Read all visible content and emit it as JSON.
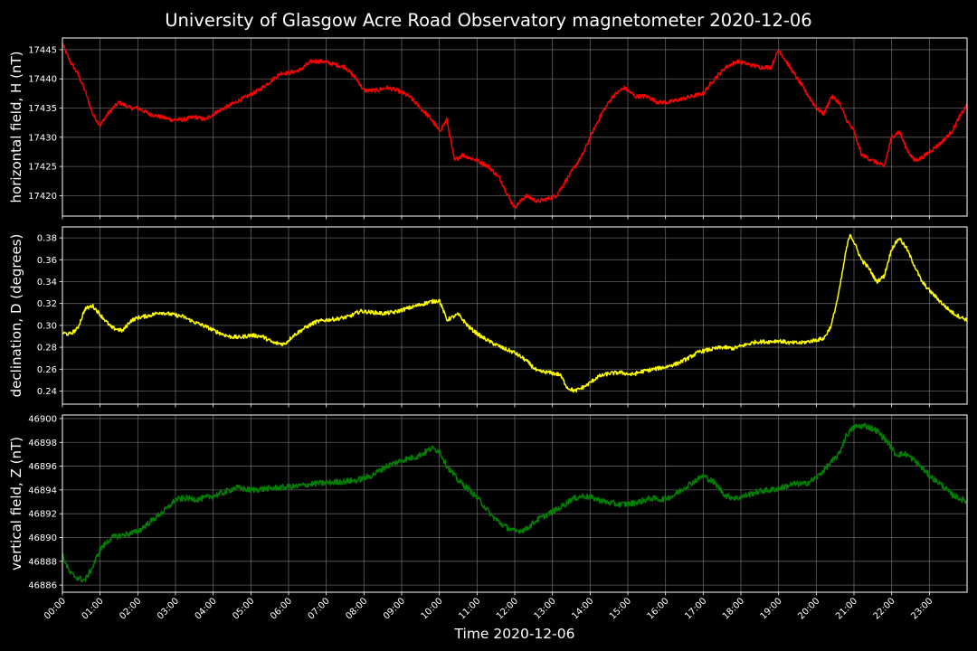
{
  "chart_data": {
    "type": "line",
    "title": "University of Glasgow Acre Road Observatory magnetometer 2020-12-06",
    "xlabel": "Time 2020-12-06",
    "x_ticks": [
      "00:00",
      "01:00",
      "02:00",
      "03:00",
      "04:00",
      "05:00",
      "06:00",
      "07:00",
      "08:00",
      "09:00",
      "10:00",
      "11:00",
      "12:00",
      "13:00",
      "14:00",
      "15:00",
      "16:00",
      "17:00",
      "18:00",
      "19:00",
      "20:00",
      "21:00",
      "22:00",
      "23:00"
    ],
    "xlim": [
      0,
      24
    ],
    "grid": true,
    "colors": {
      "background": "#000000",
      "grid": "#7f7f7f",
      "H": "#ff0000",
      "D": "#ffff00",
      "Z": "#008000",
      "text": "#ffffff"
    },
    "panels": [
      {
        "key": "H",
        "ylabel": "horizontal field, H (nT)",
        "ylim": [
          17416.5,
          17447
        ],
        "y_ticks": [
          17420,
          17425,
          17430,
          17435,
          17440,
          17445
        ],
        "noise": 0.35,
        "series": {
          "x": [
            0,
            0.2,
            0.4,
            0.6,
            0.8,
            1.0,
            1.2,
            1.5,
            1.8,
            2.0,
            2.3,
            2.6,
            2.9,
            3.2,
            3.5,
            3.8,
            4.0,
            4.3,
            4.6,
            4.9,
            5.2,
            5.5,
            5.8,
            6.0,
            6.3,
            6.6,
            6.9,
            7.2,
            7.5,
            7.8,
            8.0,
            8.3,
            8.6,
            8.9,
            9.2,
            9.5,
            9.8,
            10.0,
            10.2,
            10.4,
            10.6,
            10.8,
            11.0,
            11.3,
            11.6,
            11.9,
            12.0,
            12.3,
            12.6,
            12.9,
            13.1,
            13.3,
            13.5,
            13.8,
            14.0,
            14.3,
            14.6,
            14.9,
            15.2,
            15.5,
            15.8,
            16.1,
            16.4,
            16.7,
            17.0,
            17.3,
            17.6,
            17.9,
            18.2,
            18.5,
            18.8,
            19.0,
            19.2,
            19.5,
            19.8,
            20.0,
            20.2,
            20.4,
            20.6,
            20.8,
            21.0,
            21.2,
            21.5,
            21.8,
            22.0,
            22.2,
            22.4,
            22.6,
            22.8,
            23.0,
            23.3,
            23.6,
            23.8,
            24.0
          ],
          "values": [
            17446,
            17443,
            17441,
            17438,
            17434,
            17432,
            17434,
            17436,
            17435,
            17435,
            17434,
            17433.5,
            17433,
            17433,
            17433.5,
            17433,
            17434,
            17435,
            17436,
            17437,
            17438,
            17439.5,
            17441,
            17441,
            17441.5,
            17443,
            17443,
            17442.5,
            17442,
            17440,
            17438,
            17438,
            17438.5,
            17438,
            17437,
            17435,
            17433,
            17431,
            17433,
            17426,
            17427,
            17426.5,
            17426,
            17425,
            17423,
            17419,
            17418,
            17420,
            17419,
            17419.5,
            17420,
            17422,
            17424,
            17427,
            17430,
            17434,
            17437,
            17438.5,
            17437,
            17437,
            17436,
            17436,
            17436.5,
            17437,
            17437.5,
            17440,
            17442,
            17443,
            17442.5,
            17442,
            17442,
            17445,
            17443,
            17440,
            17437,
            17435,
            17434,
            17437,
            17436,
            17433,
            17431,
            17427,
            17426,
            17425,
            17430,
            17431,
            17428,
            17426,
            17426.5,
            17427.5,
            17429,
            17431,
            17433.5,
            17435.5
          ]
        }
      },
      {
        "key": "D",
        "ylabel": "declination, D (degrees)",
        "ylim": [
          0.228,
          0.39
        ],
        "y_ticks": [
          0.24,
          0.26,
          0.28,
          0.3,
          0.32,
          0.34,
          0.36,
          0.38
        ],
        "noise": 0.0018,
        "series": {
          "x": [
            0,
            0.2,
            0.4,
            0.6,
            0.8,
            1.0,
            1.3,
            1.6,
            1.8,
            2.0,
            2.3,
            2.6,
            2.9,
            3.2,
            3.5,
            3.8,
            4.1,
            4.4,
            4.7,
            5.0,
            5.3,
            5.6,
            5.9,
            6.1,
            6.4,
            6.7,
            7.0,
            7.3,
            7.6,
            7.9,
            8.2,
            8.5,
            8.8,
            9.1,
            9.4,
            9.7,
            10.0,
            10.2,
            10.5,
            10.8,
            11.1,
            11.4,
            11.7,
            12.0,
            12.3,
            12.6,
            12.9,
            13.2,
            13.4,
            13.6,
            13.9,
            14.2,
            14.5,
            14.8,
            15.1,
            15.4,
            15.7,
            16.0,
            16.3,
            16.6,
            16.9,
            17.2,
            17.5,
            17.8,
            18.1,
            18.4,
            18.7,
            19.0,
            19.3,
            19.6,
            19.9,
            20.2,
            20.4,
            20.6,
            20.8,
            20.9,
            21.0,
            21.2,
            21.4,
            21.6,
            21.8,
            22.0,
            22.2,
            22.4,
            22.6,
            22.8,
            23.0,
            23.2,
            23.4,
            23.6,
            23.8,
            24.0
          ],
          "values": [
            0.293,
            0.292,
            0.297,
            0.315,
            0.318,
            0.31,
            0.298,
            0.295,
            0.304,
            0.307,
            0.309,
            0.312,
            0.31,
            0.308,
            0.303,
            0.299,
            0.294,
            0.29,
            0.289,
            0.291,
            0.29,
            0.284,
            0.283,
            0.29,
            0.297,
            0.303,
            0.305,
            0.306,
            0.308,
            0.313,
            0.312,
            0.311,
            0.312,
            0.315,
            0.318,
            0.321,
            0.323,
            0.305,
            0.31,
            0.298,
            0.29,
            0.284,
            0.279,
            0.275,
            0.268,
            0.258,
            0.257,
            0.255,
            0.243,
            0.24,
            0.245,
            0.253,
            0.256,
            0.257,
            0.255,
            0.258,
            0.26,
            0.262,
            0.265,
            0.27,
            0.276,
            0.278,
            0.28,
            0.279,
            0.282,
            0.285,
            0.285,
            0.286,
            0.284,
            0.284,
            0.286,
            0.288,
            0.3,
            0.33,
            0.37,
            0.384,
            0.376,
            0.36,
            0.352,
            0.34,
            0.345,
            0.37,
            0.38,
            0.37,
            0.355,
            0.34,
            0.332,
            0.325,
            0.318,
            0.312,
            0.308,
            0.305
          ]
        }
      },
      {
        "key": "Z",
        "ylabel": "vertical field, Z (nT)",
        "ylim": [
          46885.4,
          46900.3
        ],
        "y_ticks": [
          46886,
          46888,
          46890,
          46892,
          46894,
          46896,
          46898,
          46900
        ],
        "noise": 0.25,
        "series": {
          "x": [
            0,
            0.2,
            0.4,
            0.6,
            0.8,
            1.0,
            1.3,
            1.6,
            2.0,
            2.4,
            2.8,
            3.0,
            3.3,
            3.6,
            4.0,
            4.3,
            4.6,
            5.0,
            5.4,
            5.8,
            6.2,
            6.6,
            7.0,
            7.4,
            7.8,
            8.2,
            8.6,
            9.0,
            9.4,
            9.8,
            10.0,
            10.2,
            10.5,
            10.8,
            11.1,
            11.4,
            11.7,
            12.0,
            12.3,
            12.6,
            12.9,
            13.2,
            13.5,
            13.8,
            14.1,
            14.4,
            14.7,
            15.0,
            15.3,
            15.6,
            15.9,
            16.2,
            16.5,
            16.8,
            17.0,
            17.3,
            17.6,
            17.9,
            18.2,
            18.5,
            18.8,
            19.1,
            19.4,
            19.7,
            20.0,
            20.3,
            20.6,
            20.8,
            21.0,
            21.3,
            21.6,
            21.9,
            22.1,
            22.4,
            22.7,
            23.0,
            23.3,
            23.6,
            24.0
          ],
          "values": [
            46888.5,
            46887,
            46886.6,
            46886.4,
            46887.5,
            46889,
            46890,
            46890.2,
            46890.5,
            46891.5,
            46892.5,
            46893.2,
            46893.3,
            46893.2,
            46893.5,
            46893.8,
            46894.2,
            46894,
            46894.1,
            46894.2,
            46894.3,
            46894.5,
            46894.6,
            46894.7,
            46894.8,
            46895.2,
            46896,
            46896.5,
            46896.8,
            46897.5,
            46897.3,
            46896,
            46894.8,
            46894,
            46893,
            46891.8,
            46891,
            46890.5,
            46890.7,
            46891.5,
            46892,
            46892.5,
            46893.2,
            46893.5,
            46893.3,
            46893,
            46892.8,
            46892.8,
            46893,
            46893.3,
            46893.2,
            46893.5,
            46894.2,
            46894.8,
            46895.2,
            46894.6,
            46893.5,
            46893.3,
            46893.6,
            46893.9,
            46894,
            46894.2,
            46894.5,
            46894.5,
            46895,
            46896,
            46897,
            46898.6,
            46899.3,
            46899.4,
            46899,
            46898,
            46897,
            46897,
            46896.2,
            46895.2,
            46894.5,
            46893.6,
            46893
          ]
        }
      }
    ]
  }
}
